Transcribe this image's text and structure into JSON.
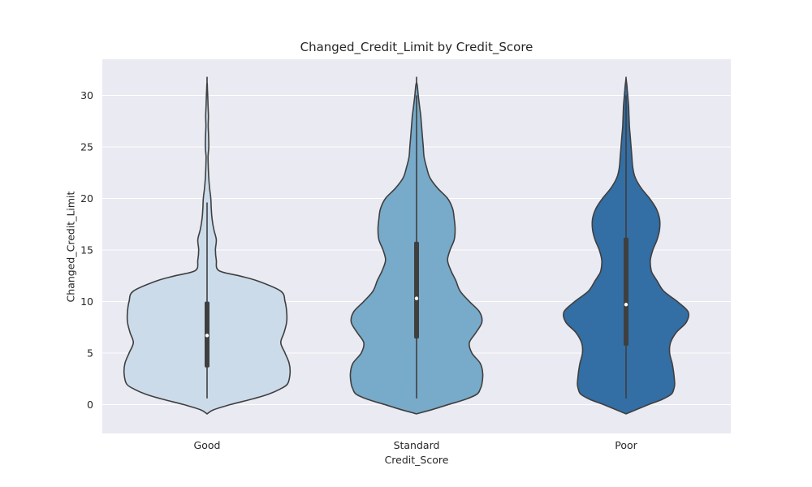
{
  "chart_data": {
    "type": "violin",
    "title": "Changed_Credit_Limit by Credit_Score",
    "xlabel": "Credit_Score",
    "ylabel": "Changed_Credit_Limit",
    "ylim": [
      -2.8,
      33.5
    ],
    "yticks": [
      0,
      5,
      10,
      15,
      20,
      25,
      30
    ],
    "grid": true,
    "legend": "none",
    "categories": [
      "Good",
      "Standard",
      "Poor"
    ],
    "colors": [
      "#cbdbea",
      "#78aac9",
      "#336ea4"
    ],
    "background": "#eaeaf2",
    "stats": [
      {
        "min": 0.6,
        "q1": 3.6,
        "median": 6.7,
        "q3": 10.0,
        "max": 19.6,
        "whisker_low": 0.6,
        "whisker_high": 19.6
      },
      {
        "min": 0.6,
        "q1": 6.4,
        "median": 10.3,
        "q3": 15.8,
        "max": 30.0,
        "whisker_low": 0.6,
        "whisker_high": 30.0
      },
      {
        "min": 0.6,
        "q1": 5.7,
        "median": 9.7,
        "q3": 16.2,
        "max": 30.0,
        "whisker_low": 0.6,
        "whisker_high": 30.0
      }
    ],
    "density_y": [
      -0.9,
      -0.5,
      0,
      0.5,
      1,
      1.5,
      2,
      3,
      4,
      5,
      6,
      7,
      8,
      9,
      10,
      11,
      12,
      12.5,
      13,
      14,
      15,
      16,
      17,
      18,
      19,
      20,
      21,
      22,
      23,
      24,
      25,
      26,
      27,
      28,
      29,
      30,
      30.5,
      31,
      31.3,
      31.7
    ],
    "density": [
      [
        0.0,
        0.08,
        0.28,
        0.52,
        0.73,
        0.87,
        0.96,
        0.99,
        0.98,
        0.93,
        0.88,
        0.92,
        0.95,
        0.95,
        0.93,
        0.88,
        0.6,
        0.38,
        0.14,
        0.11,
        0.1,
        0.11,
        0.08,
        0.06,
        0.05,
        0.045,
        0.03,
        0.02,
        0.015,
        0.012,
        0.02,
        0.018,
        0.014,
        0.016,
        0.012,
        0.008,
        0.005,
        0.003,
        0.0,
        0.0
      ],
      [
        0.0,
        0.18,
        0.38,
        0.58,
        0.72,
        0.76,
        0.78,
        0.79,
        0.76,
        0.66,
        0.63,
        0.71,
        0.78,
        0.75,
        0.63,
        0.52,
        0.47,
        0.44,
        0.41,
        0.37,
        0.4,
        0.45,
        0.46,
        0.45,
        0.43,
        0.37,
        0.25,
        0.16,
        0.12,
        0.09,
        0.08,
        0.07,
        0.06,
        0.05,
        0.035,
        0.02,
        0.015,
        0.008,
        0.0,
        0.0
      ],
      [
        0.0,
        0.12,
        0.27,
        0.43,
        0.54,
        0.57,
        0.58,
        0.57,
        0.55,
        0.52,
        0.53,
        0.6,
        0.72,
        0.74,
        0.61,
        0.45,
        0.37,
        0.33,
        0.3,
        0.29,
        0.32,
        0.37,
        0.4,
        0.4,
        0.36,
        0.28,
        0.18,
        0.11,
        0.08,
        0.07,
        0.06,
        0.05,
        0.04,
        0.035,
        0.03,
        0.02,
        0.015,
        0.01,
        0.005,
        0.0
      ]
    ]
  }
}
